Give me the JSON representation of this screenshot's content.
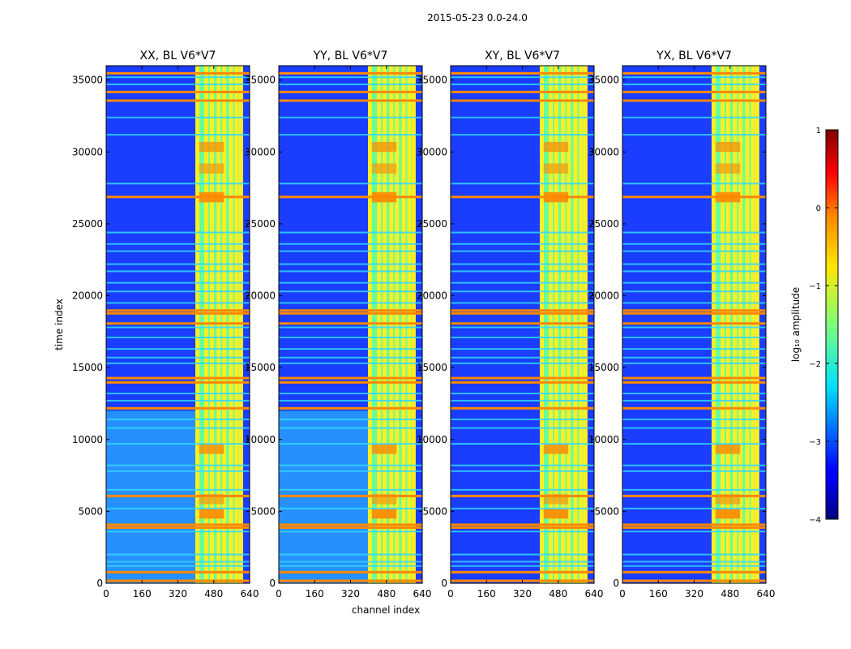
{
  "suptitle": "2015-05-23 0.0-24.0",
  "colors": {
    "noise_blue": "#1a3dff",
    "deep_blue": "#00009a",
    "cyan": "#33d6ff",
    "green": "#66ff99",
    "yellow": "#ffee22",
    "orange": "#ff8800",
    "red": "#dd1100",
    "dark_red": "#800000"
  },
  "chart_data": {
    "type": "heatmap",
    "xlabel": "channel index",
    "ylabel": "time index",
    "xlim": [
      0,
      640
    ],
    "ylim": [
      0,
      36000
    ],
    "xticks": [
      0,
      160,
      320,
      480,
      640
    ],
    "yticks": [
      0,
      5000,
      10000,
      15000,
      20000,
      25000,
      30000,
      35000
    ],
    "panels": [
      {
        "title": "XX, BL V6*V7",
        "bright_band": [
          405,
          600
        ],
        "low_cyan": true
      },
      {
        "title": "YY, BL V6*V7",
        "bright_band": [
          405,
          600
        ],
        "low_cyan": true
      },
      {
        "title": "XY, BL V6*V7",
        "bright_band": [
          405,
          600
        ],
        "low_cyan": false
      },
      {
        "title": "YX, BL V6*V7",
        "bright_band": [
          405,
          600
        ],
        "low_cyan": false
      }
    ],
    "band_channels": [
      405,
      445,
      470,
      500,
      525,
      555,
      580,
      600
    ],
    "rfi_rows_orange": [
      200,
      800,
      3900,
      4100,
      6100,
      12200,
      14000,
      14300,
      18100,
      18800,
      19000,
      26900,
      33600,
      34200,
      35500
    ],
    "rfi_rows_cyan": [
      1200,
      1500,
      2000,
      3600,
      5200,
      6500,
      7800,
      8200,
      9700,
      10800,
      11400,
      12700,
      13200,
      15300,
      15700,
      16300,
      17100,
      17800,
      19500,
      20300,
      20900,
      21700,
      22200,
      23100,
      23600,
      24400,
      27800,
      31200,
      32400,
      34700,
      35200
    ],
    "colorbar": {
      "label": "log₁₀ amplitude",
      "range": [
        -4,
        1
      ],
      "ticks": [
        1,
        0,
        -1,
        -2,
        -3,
        -4
      ],
      "tick_labels": [
        "1",
        "0",
        "−1",
        "−2",
        "−3",
        "−4"
      ]
    }
  }
}
